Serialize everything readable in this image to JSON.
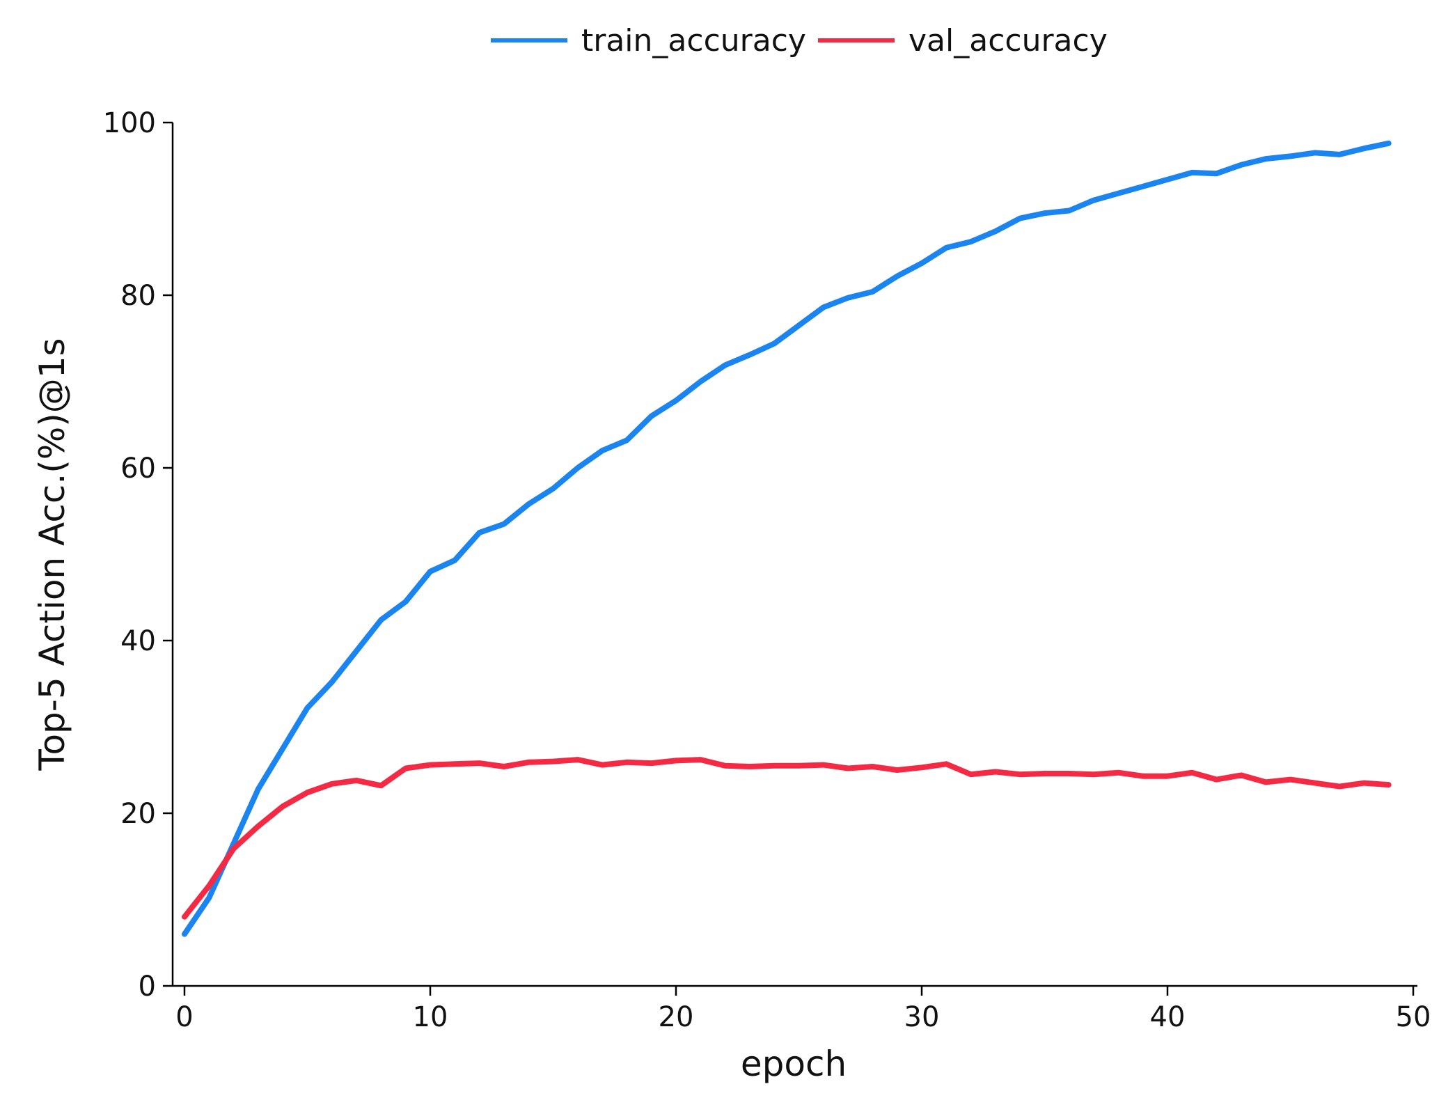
{
  "chart_data": {
    "type": "line",
    "xlabel": "epoch",
    "ylabel": "Top-5 Action Acc.(%)@1s",
    "xlim": [
      0,
      50
    ],
    "ylim": [
      0,
      100
    ],
    "xticks": [
      0,
      10,
      20,
      30,
      40,
      50
    ],
    "yticks": [
      0,
      20,
      40,
      60,
      80,
      100
    ],
    "grid": false,
    "legend_placement": "top-center",
    "x": [
      0,
      1,
      2,
      3,
      4,
      5,
      6,
      7,
      8,
      9,
      10,
      11,
      12,
      13,
      14,
      15,
      16,
      17,
      18,
      19,
      20,
      21,
      22,
      23,
      24,
      25,
      26,
      27,
      28,
      29,
      30,
      31,
      32,
      33,
      34,
      35,
      36,
      37,
      38,
      39,
      40,
      41,
      42,
      43,
      44,
      45,
      46,
      47,
      48,
      49
    ],
    "series": [
      {
        "name": "train_accuracy",
        "color": "#1a84f0",
        "values": [
          6,
          10.2,
          16.5,
          22.8,
          27.5,
          32.2,
          35.2,
          38.8,
          42.4,
          44.5,
          48,
          49.3,
          52.5,
          53.5,
          55.8,
          57.6,
          60,
          62,
          63.2,
          66,
          67.8,
          70,
          71.9,
          73.1,
          74.4,
          76.5,
          78.6,
          79.7,
          80.4,
          82.2,
          83.7,
          85.5,
          86.2,
          87.4,
          88.9,
          89.5,
          89.8,
          91,
          91.8,
          92.6,
          93.4,
          94.2,
          94.1,
          95.1,
          95.8,
          96.1,
          96.5,
          96.3,
          97,
          97.6
        ]
      },
      {
        "name": "val_accuracy",
        "color": "#f42a45",
        "values": [
          8,
          11.6,
          15.9,
          18.5,
          20.8,
          22.4,
          23.4,
          23.8,
          23.2,
          25.2,
          25.6,
          25.7,
          25.8,
          25.4,
          25.9,
          26,
          26.2,
          25.6,
          25.9,
          25.8,
          26.1,
          26.2,
          25.5,
          25.4,
          25.5,
          25.5,
          25.6,
          25.2,
          25.4,
          25,
          25.3,
          25.7,
          24.5,
          24.8,
          24.5,
          24.6,
          24.6,
          24.5,
          24.7,
          24.3,
          24.3,
          24.7,
          23.9,
          24.4,
          23.6,
          23.9,
          23.5,
          23.1,
          23.5,
          23.3
        ]
      }
    ]
  }
}
